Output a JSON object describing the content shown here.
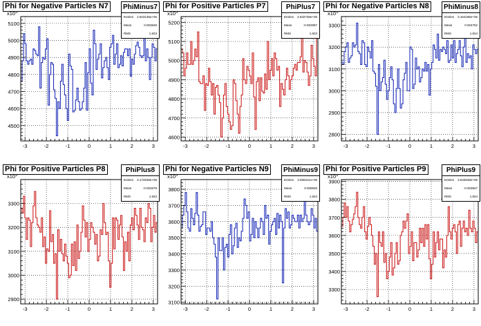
{
  "colors": {
    "negative": "#1f2fb8",
    "positive": "#cc1f1f",
    "frame": "#000000"
  },
  "stat_labels": {
    "entries": "Entries",
    "mean": "Mean",
    "rms": "RMS"
  },
  "footer_text": "",
  "chart_data": [
    {
      "type": "histogram-step",
      "title": "Phi for Negative Particles N7",
      "stats": {
        "name": "PhiMinus7",
        "entries": "4.823135e+06",
        "mean": "0.003849",
        "rms": "1.823"
      },
      "color": "negative",
      "exponent": "x10^3",
      "xlim": [
        -3.2,
        3.2
      ],
      "ylim": [
        4410,
        5140
      ],
      "x_ticks": [
        -3,
        -2,
        -1,
        0,
        1,
        2,
        3
      ],
      "y_ticks": [
        4500,
        4600,
        4700,
        4800,
        4900,
        5000,
        5100
      ],
      "values": [
        4760,
        4880,
        5040,
        4980,
        4880,
        4860,
        4880,
        4890,
        4860,
        4950,
        4940,
        4920,
        4910,
        5080,
        4720,
        4870,
        4900,
        4890,
        4950,
        5010,
        4620,
        4800,
        4870,
        4860,
        4710,
        4660,
        4440,
        4640,
        4600,
        4760,
        4860,
        4740,
        4680,
        4600,
        4530,
        4920,
        4850,
        4830,
        4580,
        4590,
        4650,
        4720,
        4640,
        4590,
        4600,
        4640,
        4720,
        4870,
        4590,
        4810,
        4950,
        4750,
        4680,
        5060,
        4980,
        4830,
        4890,
        4920,
        4980,
        4780,
        4840,
        4880,
        4900,
        4840,
        4770,
        4960,
        4980,
        5030,
        4860,
        4920,
        4980,
        4840,
        4860,
        4910,
        4850,
        4930,
        4950,
        4950,
        4910,
        4950,
        4790,
        4890,
        4860,
        4920,
        4970,
        4990,
        4960,
        4910,
        4900,
        4910,
        5020,
        4880,
        4950,
        4900,
        4770,
        4900,
        4980,
        4960,
        4880,
        4950
      ]
    },
    {
      "type": "histogram-step",
      "title": "Phi for Positive Particles P7",
      "stats": {
        "name": "PhiPlus7",
        "entries": "4.932738e+06",
        "mean": "-0.002997",
        "rms": "1.823"
      },
      "color": "positive",
      "exponent": "x10^3",
      "xlim": [
        -3.2,
        3.2
      ],
      "ylim": [
        4580,
        5230
      ],
      "x_ticks": [
        -3,
        -2,
        -1,
        0,
        1,
        2,
        3
      ],
      "y_ticks": [
        4600,
        4700,
        4800,
        4900,
        5000,
        5100,
        5200
      ],
      "values": [
        5060,
        5040,
        4920,
        4960,
        5040,
        4980,
        4980,
        5100,
        4980,
        5000,
        5060,
        5020,
        5150,
        4890,
        4880,
        4880,
        4920,
        4740,
        4880,
        4870,
        4960,
        4890,
        4820,
        4880,
        4720,
        4860,
        4870,
        4820,
        4780,
        4600,
        4700,
        4820,
        4880,
        4760,
        4720,
        4680,
        4640,
        4660,
        4900,
        4880,
        4790,
        4720,
        4620,
        4760,
        4820,
        5010,
        4900,
        4880,
        4970,
        4950,
        4920,
        4880,
        5040,
        4810,
        4640,
        4890,
        4910,
        4790,
        4910,
        4840,
        4830,
        4930,
        4850,
        5100,
        4900,
        4950,
        5010,
        4920,
        5040,
        5010,
        4950,
        4970,
        4760,
        4880,
        4850,
        4820,
        4900,
        4960,
        4920,
        4850,
        4900,
        4920,
        4960,
        4980,
        4950,
        4990,
        4990,
        5020,
        5180,
        4940,
        5000,
        4990,
        4940,
        4870,
        4920,
        5080,
        5010,
        4970,
        4920,
        5180
      ]
    },
    {
      "type": "histogram-step",
      "title": "Phi for Negative Particles N8",
      "stats": {
        "name": "PhiMinus8",
        "entries": "3.164196e+06",
        "mean": "0.004752",
        "rms": "1.824"
      },
      "color": "negative",
      "exponent": "x10^3",
      "xlim": [
        -3.2,
        3.2
      ],
      "ylim": [
        2770,
        3340
      ],
      "x_ticks": [
        -3,
        -2,
        -1,
        0,
        1,
        2,
        3
      ],
      "y_ticks": [
        2800,
        2900,
        3000,
        3100,
        3200,
        3300
      ],
      "values": [
        3130,
        3120,
        3180,
        3200,
        3220,
        3130,
        3150,
        3160,
        3220,
        3200,
        3210,
        3310,
        3180,
        3170,
        3120,
        3230,
        3220,
        3120,
        3110,
        3200,
        3180,
        3150,
        3230,
        3090,
        3080,
        3020,
        2800,
        3120,
        3000,
        3040,
        3060,
        3140,
        3030,
        2960,
        3000,
        3060,
        3110,
        3050,
        2940,
        2900,
        3010,
        3100,
        3010,
        2920,
        2940,
        3050,
        3080,
        3130,
        3000,
        3000,
        3200,
        3190,
        3010,
        3030,
        3150,
        3100,
        3110,
        3040,
        3060,
        3100,
        3090,
        3130,
        3090,
        3120,
        2980,
        3100,
        3130,
        3210,
        3190,
        3150,
        3260,
        3140,
        3190,
        3180,
        3200,
        3190,
        3170,
        3230,
        3130,
        3140,
        3210,
        3150,
        3230,
        3130,
        3170,
        3190,
        3230,
        3160,
        3110,
        3200,
        3250,
        3130,
        3170,
        3150,
        3160,
        3100,
        3210,
        3190,
        3170,
        3190
      ]
    },
    {
      "type": "histogram-step",
      "title": "Phi for Positive Particles P8",
      "stats": {
        "name": "PhiPlus8",
        "entries": "3.172639e+06",
        "mean": "-0.002679",
        "rms": "1.823"
      },
      "color": "positive",
      "exponent": "x10^3",
      "xlim": [
        -3.2,
        3.2
      ],
      "ylim": [
        2880,
        3400
      ],
      "x_ticks": [
        -3,
        -2,
        -1,
        0,
        1,
        2,
        3
      ],
      "y_ticks": [
        2900,
        3000,
        3100,
        3200,
        3300
      ],
      "values": [
        3280,
        3260,
        3330,
        3240,
        3150,
        3240,
        3230,
        3120,
        3220,
        3290,
        3350,
        3240,
        3210,
        3200,
        3180,
        3240,
        3120,
        3160,
        3050,
        3110,
        3100,
        3270,
        3140,
        3170,
        3050,
        3090,
        2900,
        3190,
        3100,
        3150,
        3090,
        3060,
        3130,
        3080,
        3050,
        2990,
        3000,
        3130,
        3040,
        3140,
        3020,
        3210,
        3070,
        3100,
        3180,
        3290,
        3230,
        3160,
        3220,
        3100,
        3150,
        3220,
        3200,
        3180,
        3130,
        3170,
        3060,
        3080,
        3190,
        3170,
        3300,
        3220,
        3170,
        3180,
        3060,
        2950,
        3050,
        3240,
        3110,
        3240,
        3230,
        3150,
        3210,
        3250,
        3160,
        3020,
        3140,
        3100,
        3180,
        3060,
        3210,
        3240,
        3190,
        3280,
        3250,
        3210,
        3150,
        3280,
        3200,
        3190,
        3140,
        3240,
        3220,
        3300,
        3280,
        3140,
        3200,
        3250,
        3180,
        3220
      ]
    },
    {
      "type": "histogram-step",
      "title": "Phi for Negative Particles N9",
      "stats": {
        "name": "PhiMinus9",
        "entries": "3.608411e+06",
        "mean": "0.006926",
        "rms": "1.824"
      },
      "color": "negative",
      "exponent": "x10^3",
      "xlim": [
        -3.2,
        3.2
      ],
      "ylim": [
        3090,
        3860
      ],
      "x_ticks": [
        -3,
        -2,
        -1,
        0,
        1,
        2,
        3
      ],
      "y_ticks": [
        3100,
        3200,
        3300,
        3400,
        3500,
        3600,
        3700,
        3800
      ],
      "values": [
        3560,
        3640,
        3700,
        3780,
        3660,
        3560,
        3540,
        3680,
        3620,
        3580,
        3650,
        3780,
        3640,
        3540,
        3570,
        3580,
        3660,
        3660,
        3520,
        3560,
        3560,
        3540,
        3600,
        3500,
        3460,
        3380,
        3120,
        3500,
        3420,
        3420,
        3500,
        3300,
        3440,
        3460,
        3380,
        3520,
        3580,
        3400,
        3450,
        3560,
        3590,
        3440,
        3500,
        3480,
        3540,
        3620,
        3740,
        3700,
        3620,
        3660,
        3480,
        3520,
        3620,
        3500,
        3600,
        3560,
        3500,
        3560,
        3620,
        3600,
        3520,
        3700,
        3620,
        3640,
        3460,
        3540,
        3580,
        3600,
        3620,
        3520,
        3650,
        3560,
        3640,
        3600,
        3220,
        3560,
        3680,
        3620,
        3660,
        3560,
        3580,
        3640,
        3620,
        3600,
        3600,
        3640,
        3560,
        3640,
        3600,
        3620,
        3780,
        3640,
        3600,
        3580,
        3600,
        3680,
        3640,
        3560,
        3620,
        3540
      ]
    },
    {
      "type": "histogram-step",
      "title": "Phi for Positive Particles P9",
      "stats": {
        "name": "PhiPlus9",
        "entries": "3.633638e+06",
        "mean": "-0.003847",
        "rms": "1.824"
      },
      "color": "positive",
      "exponent": "x10^3",
      "xlim": [
        -3.2,
        3.2
      ],
      "ylim": [
        3220,
        3910
      ],
      "x_ticks": [
        -3,
        -2,
        -1,
        0,
        1,
        2,
        3
      ],
      "y_ticks": [
        3300,
        3400,
        3500,
        3600,
        3700,
        3800,
        3900
      ],
      "values": [
        3650,
        3700,
        3780,
        3700,
        3760,
        3680,
        3620,
        3660,
        3690,
        3720,
        3760,
        3840,
        3700,
        3660,
        3640,
        3700,
        3760,
        3620,
        3580,
        3650,
        3700,
        3660,
        3600,
        3540,
        3440,
        3500,
        3260,
        3620,
        3560,
        3540,
        3620,
        3450,
        3500,
        3360,
        3400,
        3480,
        3560,
        3380,
        3420,
        3500,
        3560,
        3440,
        3460,
        3600,
        3620,
        3680,
        3640,
        3680,
        3720,
        3500,
        3540,
        3620,
        3460,
        3560,
        3560,
        3480,
        3520,
        3640,
        3560,
        3640,
        3540,
        3660,
        3580,
        3660,
        3470,
        3360,
        3440,
        3620,
        3480,
        3560,
        3620,
        3520,
        3580,
        3580,
        3420,
        3520,
        3480,
        3600,
        3760,
        3620,
        3580,
        3640,
        3660,
        3620,
        3500,
        3660,
        3680,
        3540,
        3640,
        3680,
        3620,
        3640,
        3600,
        3740,
        3640,
        3620,
        3680,
        3640,
        3560,
        3620
      ]
    }
  ]
}
